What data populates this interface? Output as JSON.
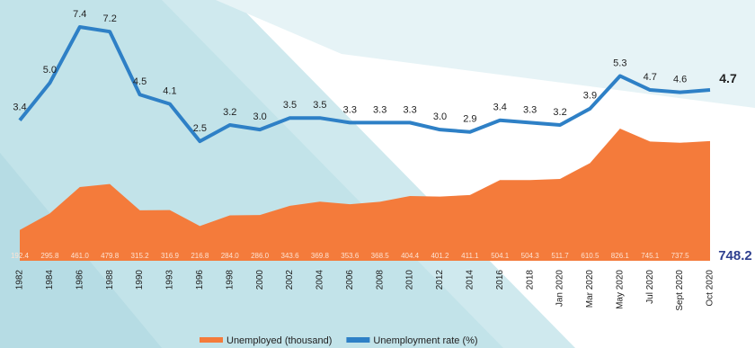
{
  "chart_data": {
    "type": "combo",
    "categories": [
      "1982",
      "1984",
      "1986",
      "1988",
      "1990",
      "1993",
      "1996",
      "1998",
      "2000",
      "2002",
      "2004",
      "2006",
      "2008",
      "2010",
      "2012",
      "2014",
      "2016",
      "2018",
      "Jan 2020",
      "Mar 2020",
      "May 2020",
      "Jul 2020",
      "Sept 2020",
      "Oct 2020"
    ],
    "series": [
      {
        "name": "Unemployed (thousand)",
        "type": "area",
        "color": "#f47b3b",
        "values": [
          192.4,
          295.8,
          461.0,
          479.8,
          315.2,
          316.9,
          216.8,
          284.0,
          286.0,
          343.6,
          369.8,
          353.6,
          368.5,
          404.4,
          401.2,
          411.1,
          504.1,
          504.3,
          511.7,
          610.5,
          826.1,
          745.1,
          737.5,
          748.2
        ],
        "value_labels": [
          "192.4",
          "295.8",
          "461.0",
          "479.8",
          "315.2",
          "316.9",
          "216.8",
          "284.0",
          "286.0",
          "343.6",
          "369.8",
          "353.6",
          "368.5",
          "404.4",
          "401.2",
          "411.1",
          "504.1",
          "504.3",
          "511.7",
          "610.5",
          "826.1",
          "745.1",
          "737.5",
          "748.2"
        ]
      },
      {
        "name": "Unemployment rate (%)",
        "type": "line",
        "color": "#2e80c6",
        "values": [
          3.4,
          5.0,
          7.4,
          7.2,
          4.5,
          4.1,
          2.5,
          3.2,
          3.0,
          3.5,
          3.5,
          3.3,
          3.3,
          3.3,
          3.0,
          2.9,
          3.4,
          3.3,
          3.2,
          3.9,
          5.3,
          4.7,
          4.6,
          4.7
        ],
        "value_labels": [
          "3.4",
          "5.0",
          "7.4",
          "7.2",
          "4.5",
          "4.1",
          "2.5",
          "3.2",
          "3.0",
          "3.5",
          "3.5",
          "3.3",
          "3.3",
          "3.3",
          "3.0",
          "2.9",
          "3.4",
          "3.3",
          "3.2",
          "3.9",
          "5.3",
          "4.7",
          "4.6",
          "4.7"
        ]
      }
    ]
  }
}
